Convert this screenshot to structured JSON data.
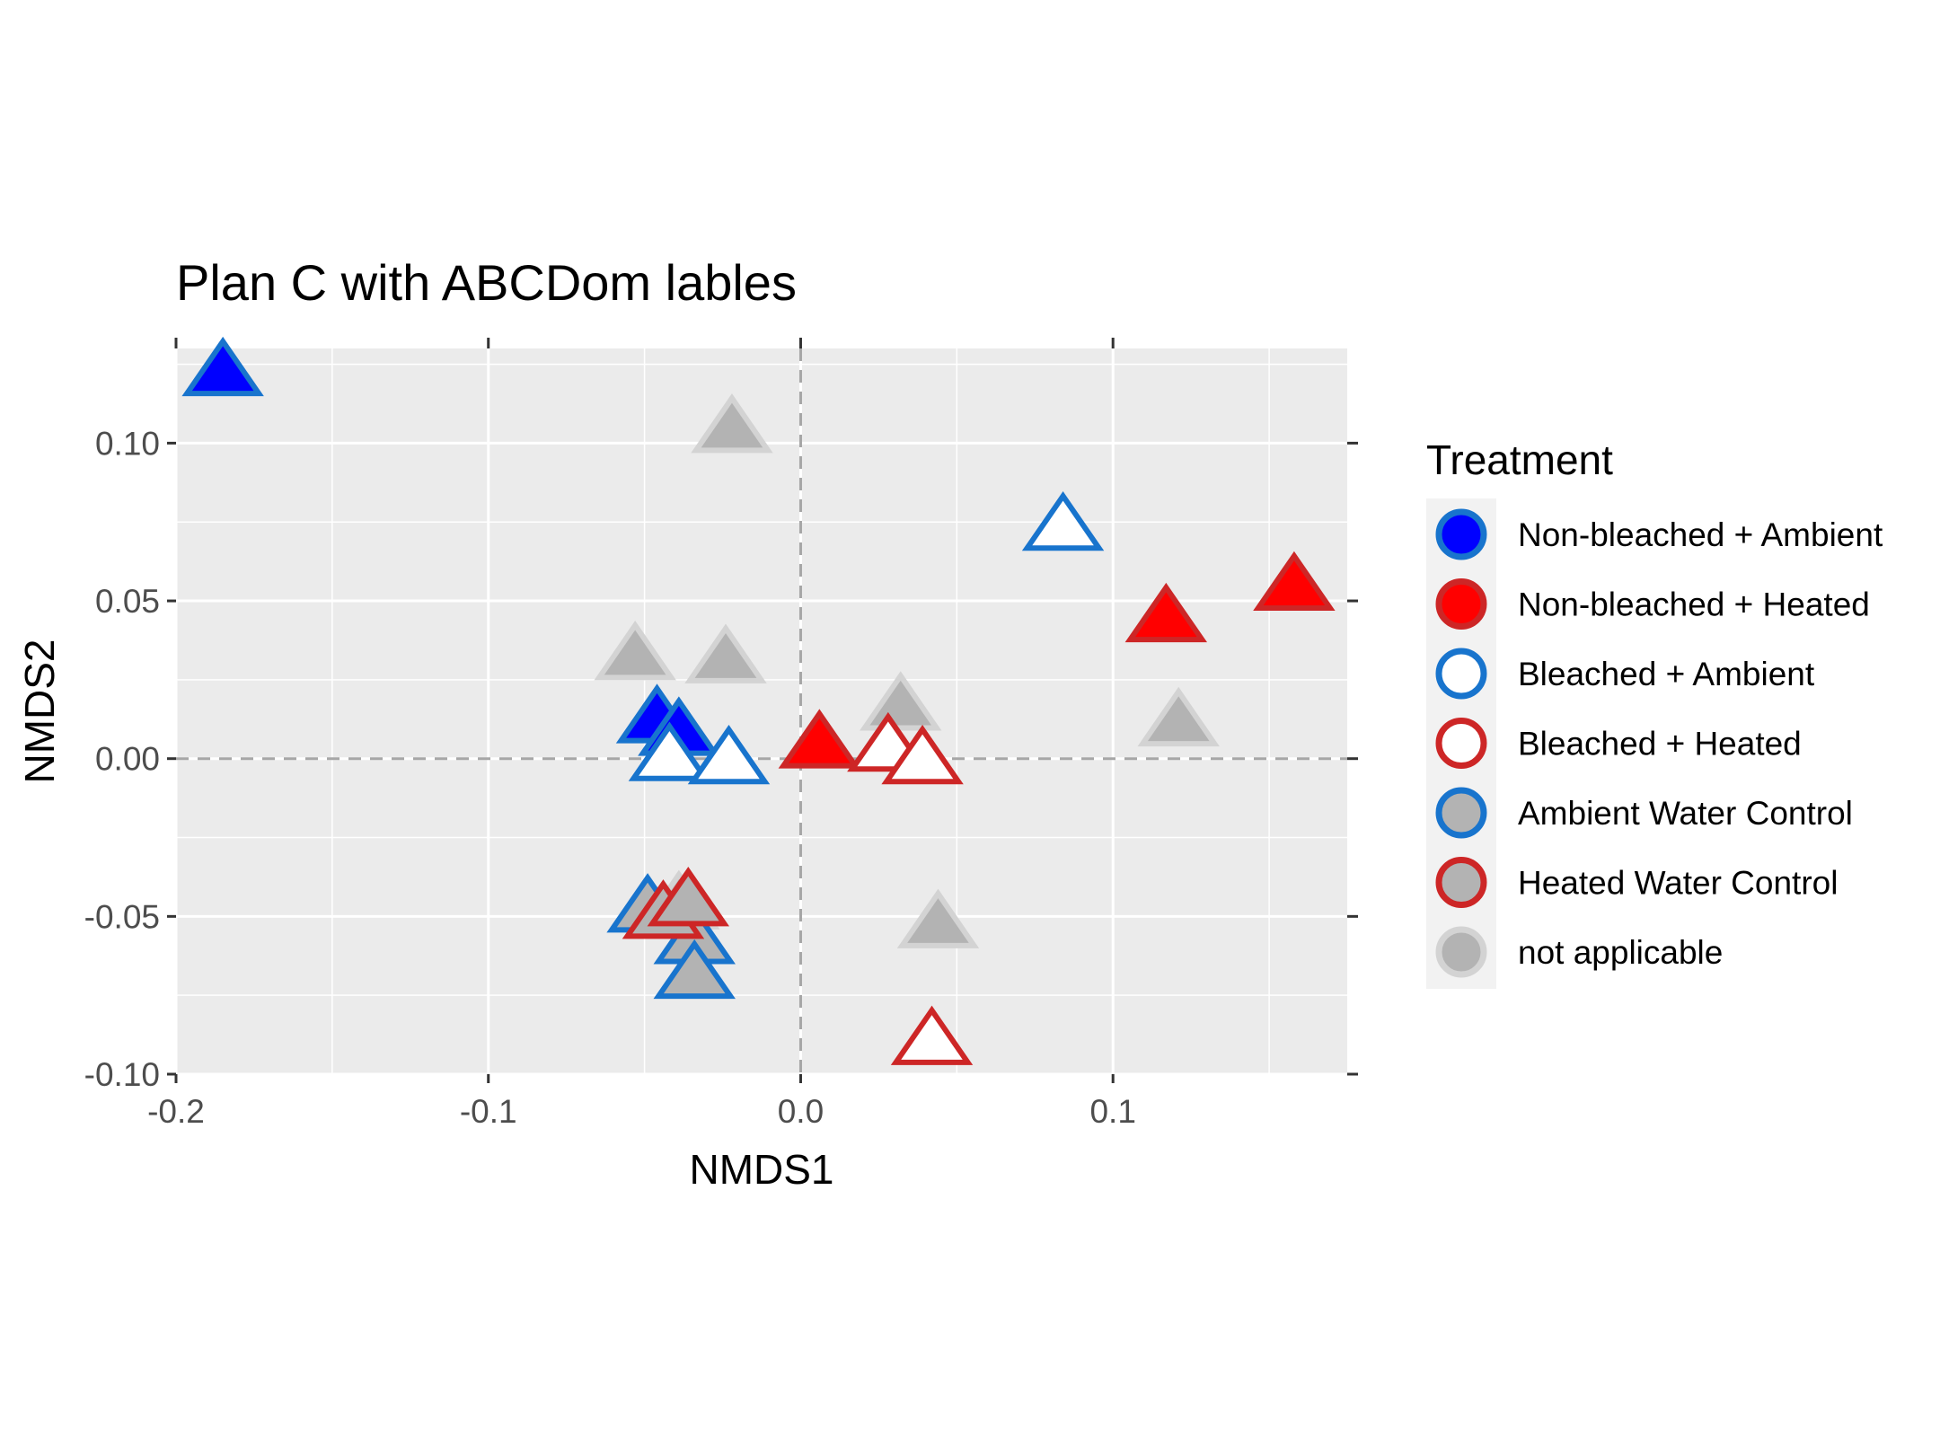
{
  "chart_data": {
    "type": "scatter",
    "title": "Plan C with ABCDom lables",
    "xlabel": "NMDS1",
    "ylabel": "NMDS2",
    "xlim": [
      -0.2,
      0.175
    ],
    "ylim": [
      -0.1,
      0.13
    ],
    "x_ticks": [
      -0.2,
      -0.1,
      0.0,
      0.1
    ],
    "x_tick_labels": [
      "-0.2",
      "-0.1",
      "0.0",
      "0.1"
    ],
    "y_ticks": [
      -0.1,
      -0.05,
      0.0,
      0.05,
      0.1
    ],
    "y_tick_labels": [
      "-0.10",
      "-0.05",
      "0.00",
      "0.05",
      "0.10"
    ],
    "reference_lines": {
      "x": 0,
      "y": 0,
      "style": "dashed"
    },
    "grid": true,
    "legend_position": "right",
    "legend": {
      "title": "Treatment",
      "entries": [
        {
          "name": "Non-bleached + Ambient",
          "fill": "#0000ff",
          "stroke": "#1874cd"
        },
        {
          "name": "Non-bleached + Heated",
          "fill": "#ff0000",
          "stroke": "#cd2626"
        },
        {
          "name": "Bleached + Ambient",
          "fill": "#ffffff",
          "stroke": "#1874cd"
        },
        {
          "name": "Bleached + Heated",
          "fill": "#ffffff",
          "stroke": "#cd2626"
        },
        {
          "name": "Ambient Water Control",
          "fill": "#b3b3b3",
          "stroke": "#1874cd"
        },
        {
          "name": "Heated Water Control",
          "fill": "#b3b3b3",
          "stroke": "#cd2626"
        },
        {
          "name": "not applicable",
          "fill": "#b3b3b3",
          "stroke": "#d3d3d3"
        }
      ]
    },
    "series": [
      {
        "name": "Non-bleached + Ambient",
        "points": [
          [
            -0.185,
            0.122
          ],
          [
            -0.046,
            0.012
          ],
          [
            -0.039,
            0.008
          ]
        ]
      },
      {
        "name": "Non-bleached + Heated",
        "points": [
          [
            0.006,
            0.004
          ],
          [
            0.117,
            0.044
          ],
          [
            0.158,
            0.054
          ]
        ]
      },
      {
        "name": "Bleached + Ambient",
        "points": [
          [
            0.084,
            0.073
          ],
          [
            -0.042,
            0.0
          ],
          [
            -0.023,
            -0.001
          ]
        ]
      },
      {
        "name": "Bleached + Heated",
        "points": [
          [
            0.028,
            0.003
          ],
          [
            0.039,
            -0.001
          ],
          [
            0.042,
            -0.09
          ]
        ]
      },
      {
        "name": "Ambient Water Control",
        "points": [
          [
            -0.049,
            -0.048
          ],
          [
            -0.034,
            -0.058
          ],
          [
            -0.034,
            -0.069
          ]
        ]
      },
      {
        "name": "Heated Water Control",
        "points": [
          [
            -0.044,
            -0.05
          ],
          [
            -0.036,
            -0.046
          ]
        ]
      },
      {
        "name": "not applicable",
        "points": [
          [
            -0.022,
            0.104
          ],
          [
            -0.053,
            0.032
          ],
          [
            -0.024,
            0.031
          ],
          [
            0.032,
            0.016
          ],
          [
            0.121,
            0.011
          ],
          [
            0.044,
            -0.053
          ],
          [
            -0.039,
            -0.047
          ]
        ]
      }
    ]
  }
}
